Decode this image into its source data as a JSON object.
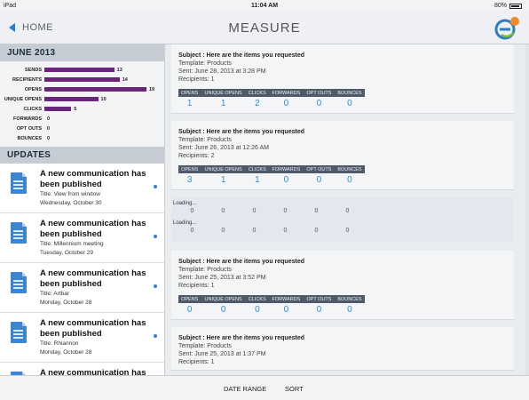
{
  "status": {
    "device": "iPad",
    "time": "11:04 AM",
    "battery": "80%"
  },
  "nav": {
    "back_label": "HOME",
    "title": "MEASURE",
    "logo_badge": ""
  },
  "month": {
    "header": "JUNE 2013",
    "stats": [
      {
        "label": "SENDS",
        "value": 13
      },
      {
        "label": "RECIPIENTS",
        "value": 14
      },
      {
        "label": "OPENS",
        "value": 19
      },
      {
        "label": "UNIQUE OPENS",
        "value": 10
      },
      {
        "label": "CLICKS",
        "value": 5
      },
      {
        "label": "FORWARDS",
        "value": 0
      },
      {
        "label": "OPT OUTS",
        "value": 0
      },
      {
        "label": "BOUNCES",
        "value": 0
      }
    ]
  },
  "updates": {
    "header": "UPDATES",
    "items": [
      {
        "title": "A new communication has been published",
        "subtitle": "Title: View from window",
        "date": "Wednesday, October 30"
      },
      {
        "title": "A new communication has been published",
        "subtitle": "Title: Millennium meeting",
        "date": "Tuesday, October 29"
      },
      {
        "title": "A new communication has been published",
        "subtitle": "Title: Artbar",
        "date": "Monday, October 28"
      },
      {
        "title": "A new communication has been published",
        "subtitle": "Title: Rhiannon",
        "date": "Monday, October 28"
      },
      {
        "title": "A new communication has been published",
        "subtitle": "",
        "date": ""
      }
    ]
  },
  "columns": [
    "OPENS",
    "UNIQUE OPENS",
    "CLICKS",
    "FORWARDS",
    "OPT OUTS",
    "BOUNCES"
  ],
  "messages": [
    {
      "subject": "Subject : Here are the items you requested",
      "template": "Template: Products",
      "sent": "Sent: June 28, 2013 at 3:28 PM",
      "recipients": "Recipients: 1",
      "metrics": [
        "1",
        "1",
        "2",
        "0",
        "0",
        "0"
      ]
    },
    {
      "subject": "Subject : Here are the items you requested",
      "template": "Template: Products",
      "sent": "Sent: June 26, 2013 at 12:26 AM",
      "recipients": "Recipients: 2",
      "metrics": [
        "3",
        "1",
        "1",
        "0",
        "0",
        "0"
      ]
    },
    {
      "subject": "Subject : Here are the items you requested",
      "template": "Template: Products",
      "sent": "Sent: June 25, 2013 at 3:52 PM",
      "recipients": "Recipients: 1",
      "metrics": [
        "0",
        "0",
        "0",
        "0",
        "0",
        "0"
      ]
    },
    {
      "subject": "Subject : Here are the items you requested",
      "template": "Template: Products",
      "sent": "Sent: June 25, 2013 at 1:37 PM",
      "recipients": "Recipients: 1"
    }
  ],
  "loading": [
    {
      "label": "Loading...",
      "metrics": [
        "0",
        "0",
        "0",
        "0",
        "0",
        "0"
      ]
    },
    {
      "label": "Loading...",
      "metrics": [
        "0",
        "0",
        "0",
        "0",
        "0",
        "0"
      ]
    }
  ],
  "toolbar": {
    "date_range": "DATE RANGE",
    "sort": "SORT"
  },
  "colors": {
    "accent": "#2b7bd3",
    "bar": "#6a2479",
    "metric": "#2f8fcf",
    "header": "#4f5a68"
  }
}
